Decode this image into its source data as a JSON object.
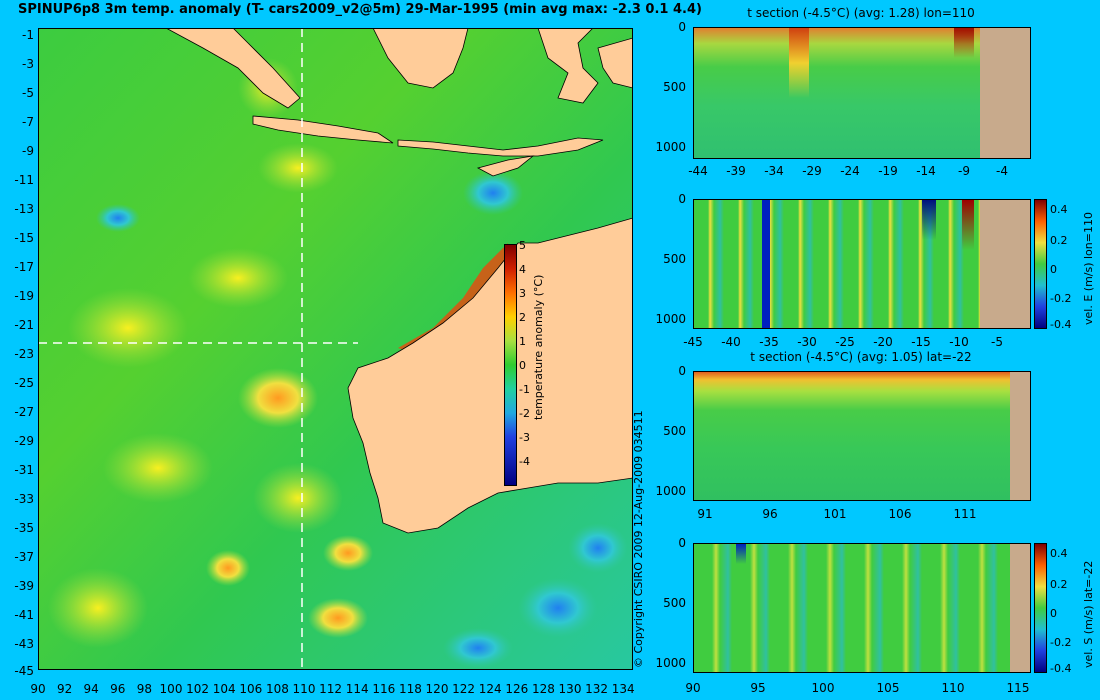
{
  "main_title": "SPINUP6p8 3m temp. anomaly (T- cars2009_v2@5m) 29-Mar-1995 (min avg max: -2.3 0.1 4.4)",
  "map": {
    "lat_ticks": [
      "-1",
      "-3",
      "-5",
      "-7",
      "-9",
      "-11",
      "-13",
      "-15",
      "-17",
      "-19",
      "-21",
      "-23",
      "-25",
      "-27",
      "-29",
      "-31",
      "-33",
      "-35",
      "-37",
      "-39",
      "-41",
      "-43",
      "-45"
    ],
    "lon_ticks": [
      "90",
      "92",
      "94",
      "96",
      "98",
      "100",
      "102",
      "104",
      "106",
      "108",
      "110",
      "112",
      "114",
      "116",
      "118",
      "120",
      "122",
      "124",
      "126",
      "128",
      "130",
      "132",
      "134"
    ],
    "colorbar": {
      "ticks": [
        "5",
        "4",
        "3",
        "2",
        "1",
        "0",
        "-1",
        "-2",
        "-3",
        "-4"
      ],
      "label": "temperature anomaly (°C)"
    },
    "section_lon": 110,
    "section_lat": -22
  },
  "copyright": "© Copyright CSIRO 2009   12-Aug-2009 034511",
  "panels": {
    "p1": {
      "title": "t section (-4.5°C) (avg: 1.28) lon=110",
      "y_ticks": [
        "0",
        "500",
        "1000"
      ],
      "x_ticks": [
        "-44",
        "-39",
        "-34",
        "-29",
        "-24",
        "-19",
        "-14",
        "-9",
        "-4"
      ]
    },
    "p2": {
      "y_ticks": [
        "0",
        "500",
        "1000"
      ],
      "x_ticks": [
        "-45",
        "-40",
        "-35",
        "-30",
        "-25",
        "-20",
        "-15",
        "-10",
        "-5"
      ],
      "colorbar_ticks": [
        "0.4",
        "0.2",
        "0",
        "-0.2",
        "-0.4"
      ],
      "colorbar_label": "vel. E (m/s) lon=110"
    },
    "p3": {
      "title": "t section (-4.5°C) (avg: 1.05) lat=-22",
      "y_ticks": [
        "0",
        "500",
        "1000"
      ],
      "x_ticks": [
        "91",
        "96",
        "101",
        "106",
        "111"
      ]
    },
    "p4": {
      "y_ticks": [
        "0",
        "500",
        "1000"
      ],
      "x_ticks": [
        "90",
        "95",
        "100",
        "105",
        "110",
        "115"
      ],
      "colorbar_ticks": [
        "0.4",
        "0.2",
        "0",
        "-0.2",
        "-0.4"
      ],
      "colorbar_label": "vel. S (m/s) lat=-22"
    }
  },
  "colors": {
    "background": "#00c8ff",
    "land": "#ffcc99",
    "section_land": "#c8aa8c",
    "ocean_base": "#33cc33"
  }
}
